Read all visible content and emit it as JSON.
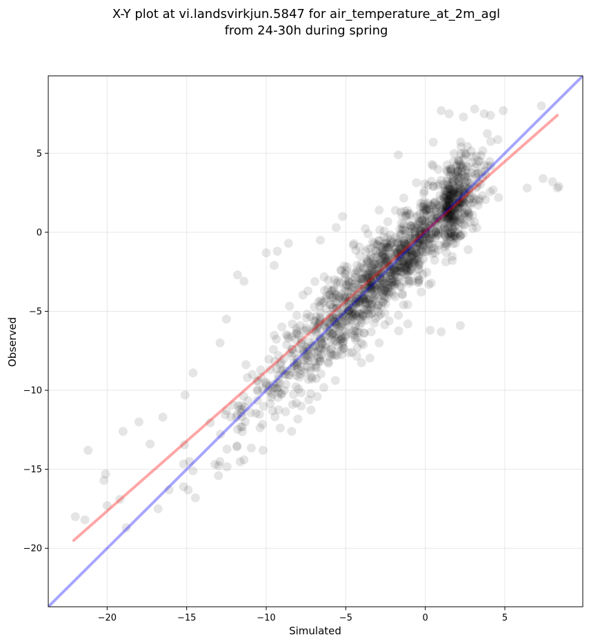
{
  "chart_data": {
    "type": "scatter",
    "title_line1": "X-Y plot at vi.landsvirkjun.5847 for air_temperature_at_2m_agl",
    "title_line2": "from 24-30h during spring",
    "xlabel": "Simulated",
    "ylabel": "Observed",
    "xlim": [
      -23.7,
      9.9
    ],
    "ylim": [
      -23.7,
      9.9
    ],
    "xticks": [
      -20,
      -15,
      -10,
      -5,
      0,
      5
    ],
    "xtick_labels": [
      "−20",
      "−15",
      "−10",
      "−5",
      "0",
      "5"
    ],
    "yticks": [
      -20,
      -15,
      -10,
      -5,
      0,
      5
    ],
    "ytick_labels": [
      "−20",
      "−15",
      "−10",
      "−5",
      "0",
      "5"
    ],
    "grid": true,
    "points": {
      "color": "#000000",
      "alpha": 0.1,
      "outliers": [
        [
          -22.0,
          -18.0
        ],
        [
          -21.4,
          -18.2
        ],
        [
          -21.2,
          -13.8
        ],
        [
          -20.1,
          -15.3
        ],
        [
          -20.2,
          -15.7
        ],
        [
          -20.0,
          -17.3
        ],
        [
          -19.2,
          -16.9
        ],
        [
          -18.8,
          -18.7
        ],
        [
          -19.0,
          -12.6
        ],
        [
          -18.0,
          -12.0
        ],
        [
          -17.3,
          -13.4
        ],
        [
          -16.5,
          -11.7
        ],
        [
          -16.8,
          -17.5
        ],
        [
          -15.1,
          -10.3
        ],
        [
          -14.6,
          -8.9
        ],
        [
          -12.9,
          -7.0
        ],
        [
          -12.5,
          -5.5
        ],
        [
          -11.8,
          -2.7
        ],
        [
          -11.4,
          -3.1
        ],
        [
          -10.0,
          -1.3
        ],
        [
          -9.5,
          -2.1
        ],
        [
          -9.3,
          -1.2
        ],
        [
          -8.6,
          -0.7
        ],
        [
          -6.6,
          -0.5
        ],
        [
          -5.6,
          0.3
        ],
        [
          -5.2,
          1.0
        ],
        [
          -3.6,
          -0.1
        ],
        [
          -2.9,
          1.4
        ],
        [
          -1.7,
          4.9
        ],
        [
          0.5,
          4.2
        ],
        [
          0.5,
          5.7
        ],
        [
          1.0,
          7.7
        ],
        [
          1.5,
          7.5
        ],
        [
          2.4,
          7.3
        ],
        [
          3.1,
          7.8
        ],
        [
          3.7,
          7.5
        ],
        [
          4.1,
          7.4
        ],
        [
          4.9,
          7.7
        ],
        [
          7.3,
          8.0
        ],
        [
          7.4,
          3.4
        ],
        [
          8.0,
          3.2
        ],
        [
          8.4,
          2.9
        ],
        [
          8.3,
          2.8
        ],
        [
          6.4,
          2.8
        ],
        [
          4.6,
          2.2
        ],
        [
          2.7,
          -1.1
        ],
        [
          1.0,
          -6.3
        ],
        [
          2.2,
          -5.9
        ],
        [
          0.3,
          -6.2
        ],
        [
          -1.1,
          -5.8
        ],
        [
          -2.9,
          -7.0
        ],
        [
          -3.4,
          -6.3
        ],
        [
          -6.8,
          -10.4
        ],
        [
          -7.8,
          -11.0
        ],
        [
          -8.4,
          -12.6
        ],
        [
          -10.2,
          -13.8
        ],
        [
          -11.4,
          -14.4
        ],
        [
          -13.0,
          -15.4
        ],
        [
          -14.6,
          -15.1
        ],
        [
          -15.2,
          -16.1
        ],
        [
          -16.1,
          -16.3
        ]
      ],
      "cloud": {
        "count": 1500,
        "x_center": -2.0,
        "x_sd": 4.4,
        "x_min": -17.5,
        "x_max": 7.5,
        "noise_sd": 1.35
      }
    },
    "lines": [
      {
        "name": "",
        "color": "#0000ff",
        "alpha": 0.35,
        "x": [
          -23.7,
          9.9
        ],
        "y": [
          -23.7,
          9.9
        ]
      },
      {
        "name": "",
        "color": "#ff0000",
        "alpha": 0.35,
        "x": [
          -22.1,
          8.3
        ],
        "y": [
          -19.5,
          7.4
        ]
      }
    ]
  }
}
